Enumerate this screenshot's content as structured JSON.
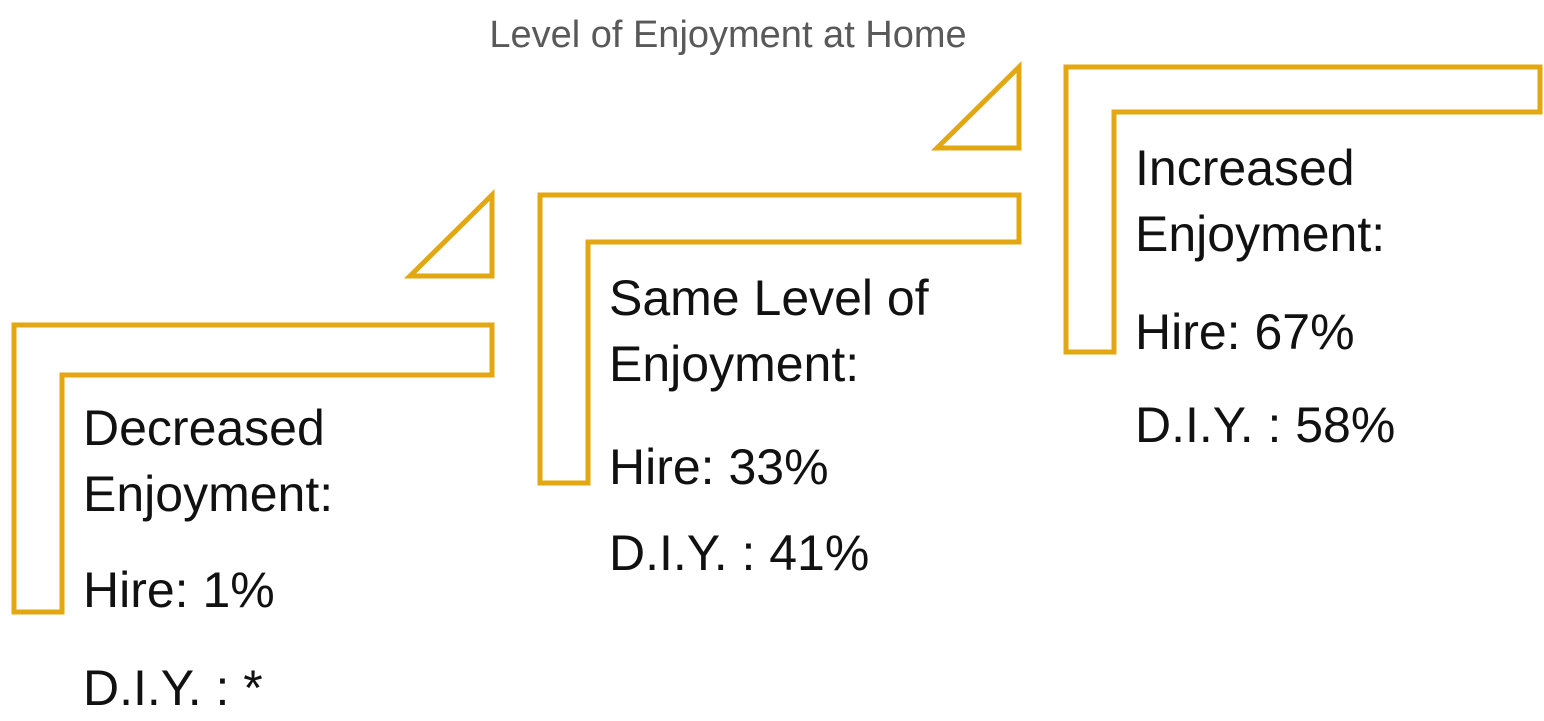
{
  "title": "Level of Enjoyment at Home",
  "steps": [
    {
      "label": "Decreased Enjoyment:",
      "hire": "Hire: 1%",
      "diy": "D.I.Y. : *"
    },
    {
      "label": "Same Level of Enjoyment:",
      "hire": "Hire: 33%",
      "diy": "D.I.Y. : 41%"
    },
    {
      "label": "Increased Enjoyment:",
      "hire": "Hire: 67%",
      "diy": "D.I.Y. : 58%"
    }
  ]
}
